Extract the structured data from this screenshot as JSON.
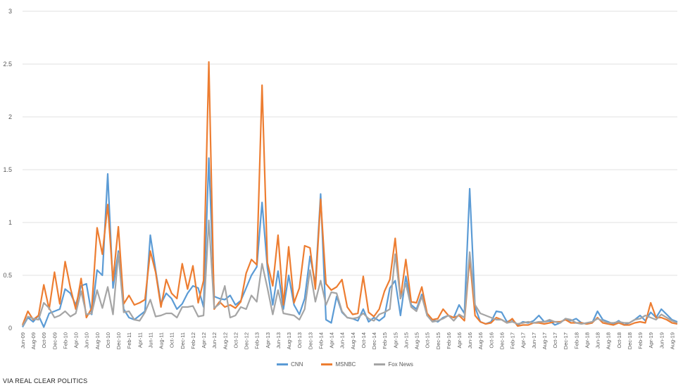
{
  "chart_data": {
    "type": "line",
    "title": "",
    "xlabel": "",
    "ylabel": "",
    "ylim": [
      0,
      3
    ],
    "yticks": [
      "0",
      "0.5",
      "1",
      "1.5",
      "2",
      "2.5",
      "3"
    ],
    "grid": true,
    "legend_position": "bottom-center",
    "x": [
      "Jun-09",
      "Jul-09",
      "Aug-09",
      "Sep-09",
      "Oct-09",
      "Nov-09",
      "Dec-09",
      "Jan-10",
      "Feb-10",
      "Mar-10",
      "Apr-10",
      "May-10",
      "Jun-10",
      "Jul-10",
      "Aug-10",
      "Sep-10",
      "Oct-10",
      "Nov-10",
      "Dec-10",
      "Jan-11",
      "Feb-11",
      "Mar-11",
      "Apr-11",
      "May-11",
      "Jun-11",
      "Jul-11",
      "Aug-11",
      "Sep-11",
      "Oct-11",
      "Nov-11",
      "Dec-11",
      "Jan-12",
      "Feb-12",
      "Mar-12",
      "Apr-12",
      "May-12",
      "Jun-12",
      "Jul-12",
      "Aug-12",
      "Sep-12",
      "Oct-12",
      "Nov-12",
      "Dec-12",
      "Jan-13",
      "Feb-13",
      "Mar-13",
      "Apr-13",
      "May-13",
      "Jun-13",
      "Jul-13",
      "Aug-13",
      "Sep-13",
      "Oct-13",
      "Nov-13",
      "Dec-13",
      "Jan-14",
      "Feb-14",
      "Mar-14",
      "Apr-14",
      "May-14",
      "Jun-14",
      "Jul-14",
      "Aug-14",
      "Sep-14",
      "Oct-14",
      "Nov-14",
      "Dec-14",
      "Jan-15",
      "Feb-15",
      "Mar-15",
      "Apr-15",
      "May-15",
      "Jun-15",
      "Jul-15",
      "Aug-15",
      "Sep-15",
      "Oct-15",
      "Nov-15",
      "Dec-15",
      "Jan-16",
      "Feb-16",
      "Mar-16",
      "Apr-16",
      "May-16",
      "Jun-16",
      "Jul-16",
      "Aug-16",
      "Sep-16",
      "Oct-16",
      "Nov-16",
      "Dec-16",
      "Jan-17",
      "Feb-17",
      "Mar-17",
      "Apr-17",
      "May-17",
      "Jun-17",
      "Jul-17",
      "Aug-17",
      "Sep-17",
      "Oct-17",
      "Nov-17",
      "Dec-17",
      "Jan-18",
      "Feb-18",
      "Mar-18",
      "Apr-18",
      "May-18",
      "Jun-18",
      "Jul-18",
      "Aug-18",
      "Sep-18",
      "Oct-18",
      "Nov-18",
      "Dec-18",
      "Jan-19",
      "Feb-19",
      "Mar-19",
      "Apr-19",
      "May-19",
      "Jun-19",
      "Jul-19",
      "Aug-19",
      "Sep-19"
    ],
    "xtick_labels": [
      "Jun-09",
      "Aug-09",
      "Oct-09",
      "Dec-09",
      "Feb-10",
      "Apr-10",
      "Jun-10",
      "Aug-10",
      "Oct-10",
      "Dec-10",
      "Feb-11",
      "Apr-11",
      "Jun-11",
      "Aug-11",
      "Oct-11",
      "Dec-11",
      "Feb-12",
      "Apr-12",
      "Jun-12",
      "Aug-12",
      "Oct-12",
      "Dec-12",
      "Feb-13",
      "Apr-13",
      "Jun-13",
      "Aug-13",
      "Oct-13",
      "Dec-13",
      "Feb-14",
      "Apr-14",
      "Jun-14",
      "Aug-14",
      "Oct-14",
      "Dec-14",
      "Feb-15",
      "Apr-15",
      "Jun-15",
      "Aug-15",
      "Oct-15",
      "Dec-15",
      "Feb-16",
      "Apr-16",
      "Jun-16",
      "Aug-16",
      "Oct-16",
      "Dec-16",
      "Feb-17",
      "Apr-17",
      "Jun-17",
      "Aug-17",
      "Oct-17",
      "Dec-17",
      "Feb-18",
      "Apr-18",
      "Jun-18",
      "Aug-18",
      "Oct-18",
      "Dec-18",
      "Feb-19",
      "Apr-19",
      "Jun-19",
      "Aug-19"
    ],
    "series": [
      {
        "name": "CNN",
        "color": "#5b9bd5",
        "values": [
          0.01,
          0.1,
          0.06,
          0.12,
          0.01,
          0.14,
          0.16,
          0.18,
          0.37,
          0.33,
          0.22,
          0.4,
          0.42,
          0.13,
          0.55,
          0.5,
          1.46,
          0.38,
          0.73,
          0.18,
          0.1,
          0.08,
          0.12,
          0.16,
          0.88,
          0.55,
          0.23,
          0.33,
          0.28,
          0.18,
          0.23,
          0.33,
          0.4,
          0.38,
          0.2,
          1.61,
          0.3,
          0.28,
          0.27,
          0.31,
          0.22,
          0.26,
          0.38,
          0.5,
          0.58,
          1.19,
          0.57,
          0.22,
          0.54,
          0.18,
          0.5,
          0.22,
          0.13,
          0.28,
          0.68,
          0.42,
          1.27,
          0.08,
          0.05,
          0.3,
          0.15,
          0.1,
          0.09,
          0.07,
          0.18,
          0.06,
          0.1,
          0.07,
          0.11,
          0.38,
          0.45,
          0.12,
          0.49,
          0.22,
          0.18,
          0.32,
          0.12,
          0.08,
          0.06,
          0.1,
          0.12,
          0.1,
          0.22,
          0.14,
          1.32,
          0.2,
          0.06,
          0.04,
          0.06,
          0.16,
          0.15,
          0.06,
          0.08,
          0.03,
          0.06,
          0.05,
          0.07,
          0.12,
          0.06,
          0.07,
          0.03,
          0.05,
          0.09,
          0.07,
          0.09,
          0.05,
          0.04,
          0.05,
          0.16,
          0.08,
          0.06,
          0.04,
          0.07,
          0.03,
          0.05,
          0.08,
          0.12,
          0.07,
          0.15,
          0.1,
          0.18,
          0.13,
          0.08,
          0.06
        ]
      },
      {
        "name": "MSNBC",
        "color": "#ed7d31",
        "values": [
          0.03,
          0.16,
          0.08,
          0.12,
          0.41,
          0.18,
          0.53,
          0.23,
          0.63,
          0.38,
          0.18,
          0.47,
          0.1,
          0.19,
          0.95,
          0.7,
          1.17,
          0.45,
          0.96,
          0.23,
          0.31,
          0.22,
          0.24,
          0.27,
          0.73,
          0.53,
          0.2,
          0.46,
          0.33,
          0.28,
          0.61,
          0.37,
          0.59,
          0.24,
          0.45,
          2.52,
          0.18,
          0.25,
          0.2,
          0.22,
          0.19,
          0.25,
          0.52,
          0.65,
          0.6,
          2.3,
          0.62,
          0.4,
          0.88,
          0.22,
          0.77,
          0.24,
          0.38,
          0.78,
          0.76,
          0.37,
          1.22,
          0.42,
          0.36,
          0.39,
          0.46,
          0.2,
          0.13,
          0.14,
          0.49,
          0.15,
          0.11,
          0.18,
          0.35,
          0.46,
          0.85,
          0.28,
          0.65,
          0.25,
          0.24,
          0.39,
          0.14,
          0.08,
          0.09,
          0.18,
          0.12,
          0.1,
          0.12,
          0.07,
          0.66,
          0.12,
          0.06,
          0.04,
          0.05,
          0.1,
          0.08,
          0.05,
          0.09,
          0.02,
          0.03,
          0.03,
          0.05,
          0.05,
          0.04,
          0.05,
          0.06,
          0.06,
          0.08,
          0.05,
          0.05,
          0.05,
          0.04,
          0.05,
          0.1,
          0.05,
          0.04,
          0.03,
          0.05,
          0.03,
          0.03,
          0.05,
          0.06,
          0.05,
          0.24,
          0.1,
          0.1,
          0.08,
          0.05,
          0.04
        ]
      },
      {
        "name": "Fox News",
        "color": "#a5a5a5",
        "values": [
          0.02,
          0.11,
          0.09,
          0.08,
          0.24,
          0.19,
          0.1,
          0.12,
          0.16,
          0.11,
          0.14,
          0.35,
          0.13,
          0.14,
          0.36,
          0.19,
          0.39,
          0.13,
          0.71,
          0.15,
          0.16,
          0.08,
          0.07,
          0.15,
          0.27,
          0.11,
          0.12,
          0.14,
          0.14,
          0.1,
          0.2,
          0.2,
          0.21,
          0.11,
          0.12,
          1.02,
          0.19,
          0.23,
          0.4,
          0.1,
          0.12,
          0.2,
          0.18,
          0.31,
          0.25,
          0.61,
          0.38,
          0.13,
          0.36,
          0.14,
          0.13,
          0.12,
          0.08,
          0.18,
          0.55,
          0.25,
          0.45,
          0.22,
          0.34,
          0.33,
          0.16,
          0.1,
          0.09,
          0.1,
          0.14,
          0.09,
          0.07,
          0.13,
          0.15,
          0.18,
          0.7,
          0.28,
          0.42,
          0.2,
          0.16,
          0.3,
          0.12,
          0.06,
          0.07,
          0.09,
          0.12,
          0.07,
          0.13,
          0.1,
          0.72,
          0.22,
          0.14,
          0.12,
          0.1,
          0.08,
          0.08,
          0.05,
          0.06,
          0.04,
          0.05,
          0.06,
          0.05,
          0.06,
          0.06,
          0.08,
          0.06,
          0.05,
          0.09,
          0.08,
          0.05,
          0.04,
          0.05,
          0.06,
          0.09,
          0.07,
          0.05,
          0.05,
          0.06,
          0.05,
          0.05,
          0.08,
          0.09,
          0.12,
          0.1,
          0.08,
          0.13,
          0.1,
          0.07,
          0.05
        ]
      }
    ]
  },
  "source": "VIA REAL CLEAR POLITICS"
}
